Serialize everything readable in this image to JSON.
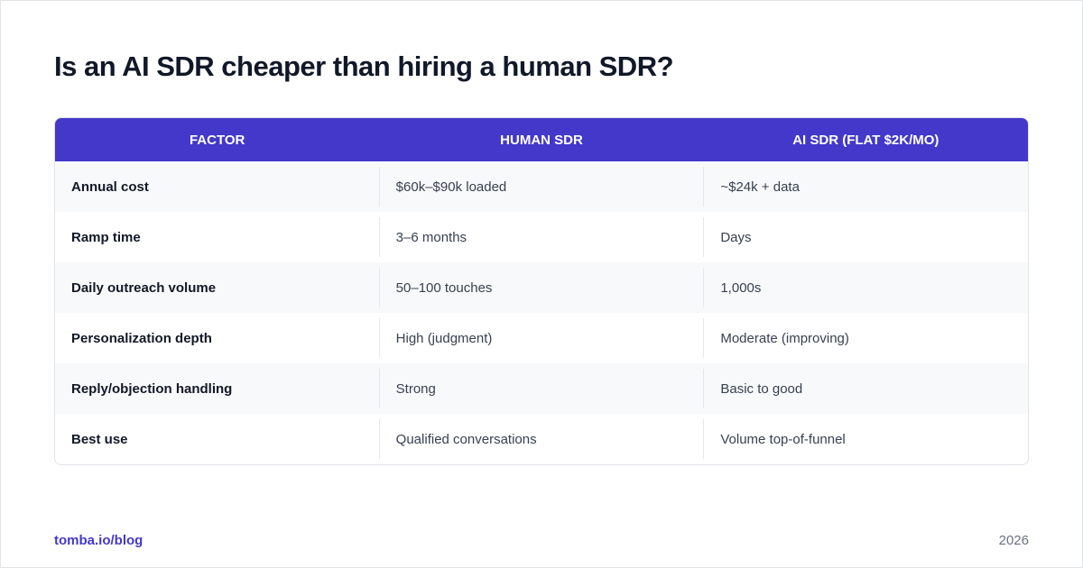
{
  "header": {
    "title": "Is an AI SDR cheaper than hiring a human SDR?"
  },
  "table": {
    "columns": [
      "FACTOR",
      "HUMAN SDR",
      "AI SDR (FLAT $2K/MO)"
    ],
    "rows": [
      [
        "Annual cost",
        "$60k–$90k loaded",
        "~$24k + data"
      ],
      [
        "Ramp time",
        "3–6 months",
        "Days"
      ],
      [
        "Daily outreach volume",
        "50–100 touches",
        "1,000s"
      ],
      [
        "Personalization depth",
        "High (judgment)",
        "Moderate (improving)"
      ],
      [
        "Reply/objection handling",
        "Strong",
        "Basic to good"
      ],
      [
        "Best use",
        "Qualified conversations",
        "Volume top-of-funnel"
      ]
    ]
  },
  "footer": {
    "link": "tomba.io/blog",
    "year": "2026"
  }
}
